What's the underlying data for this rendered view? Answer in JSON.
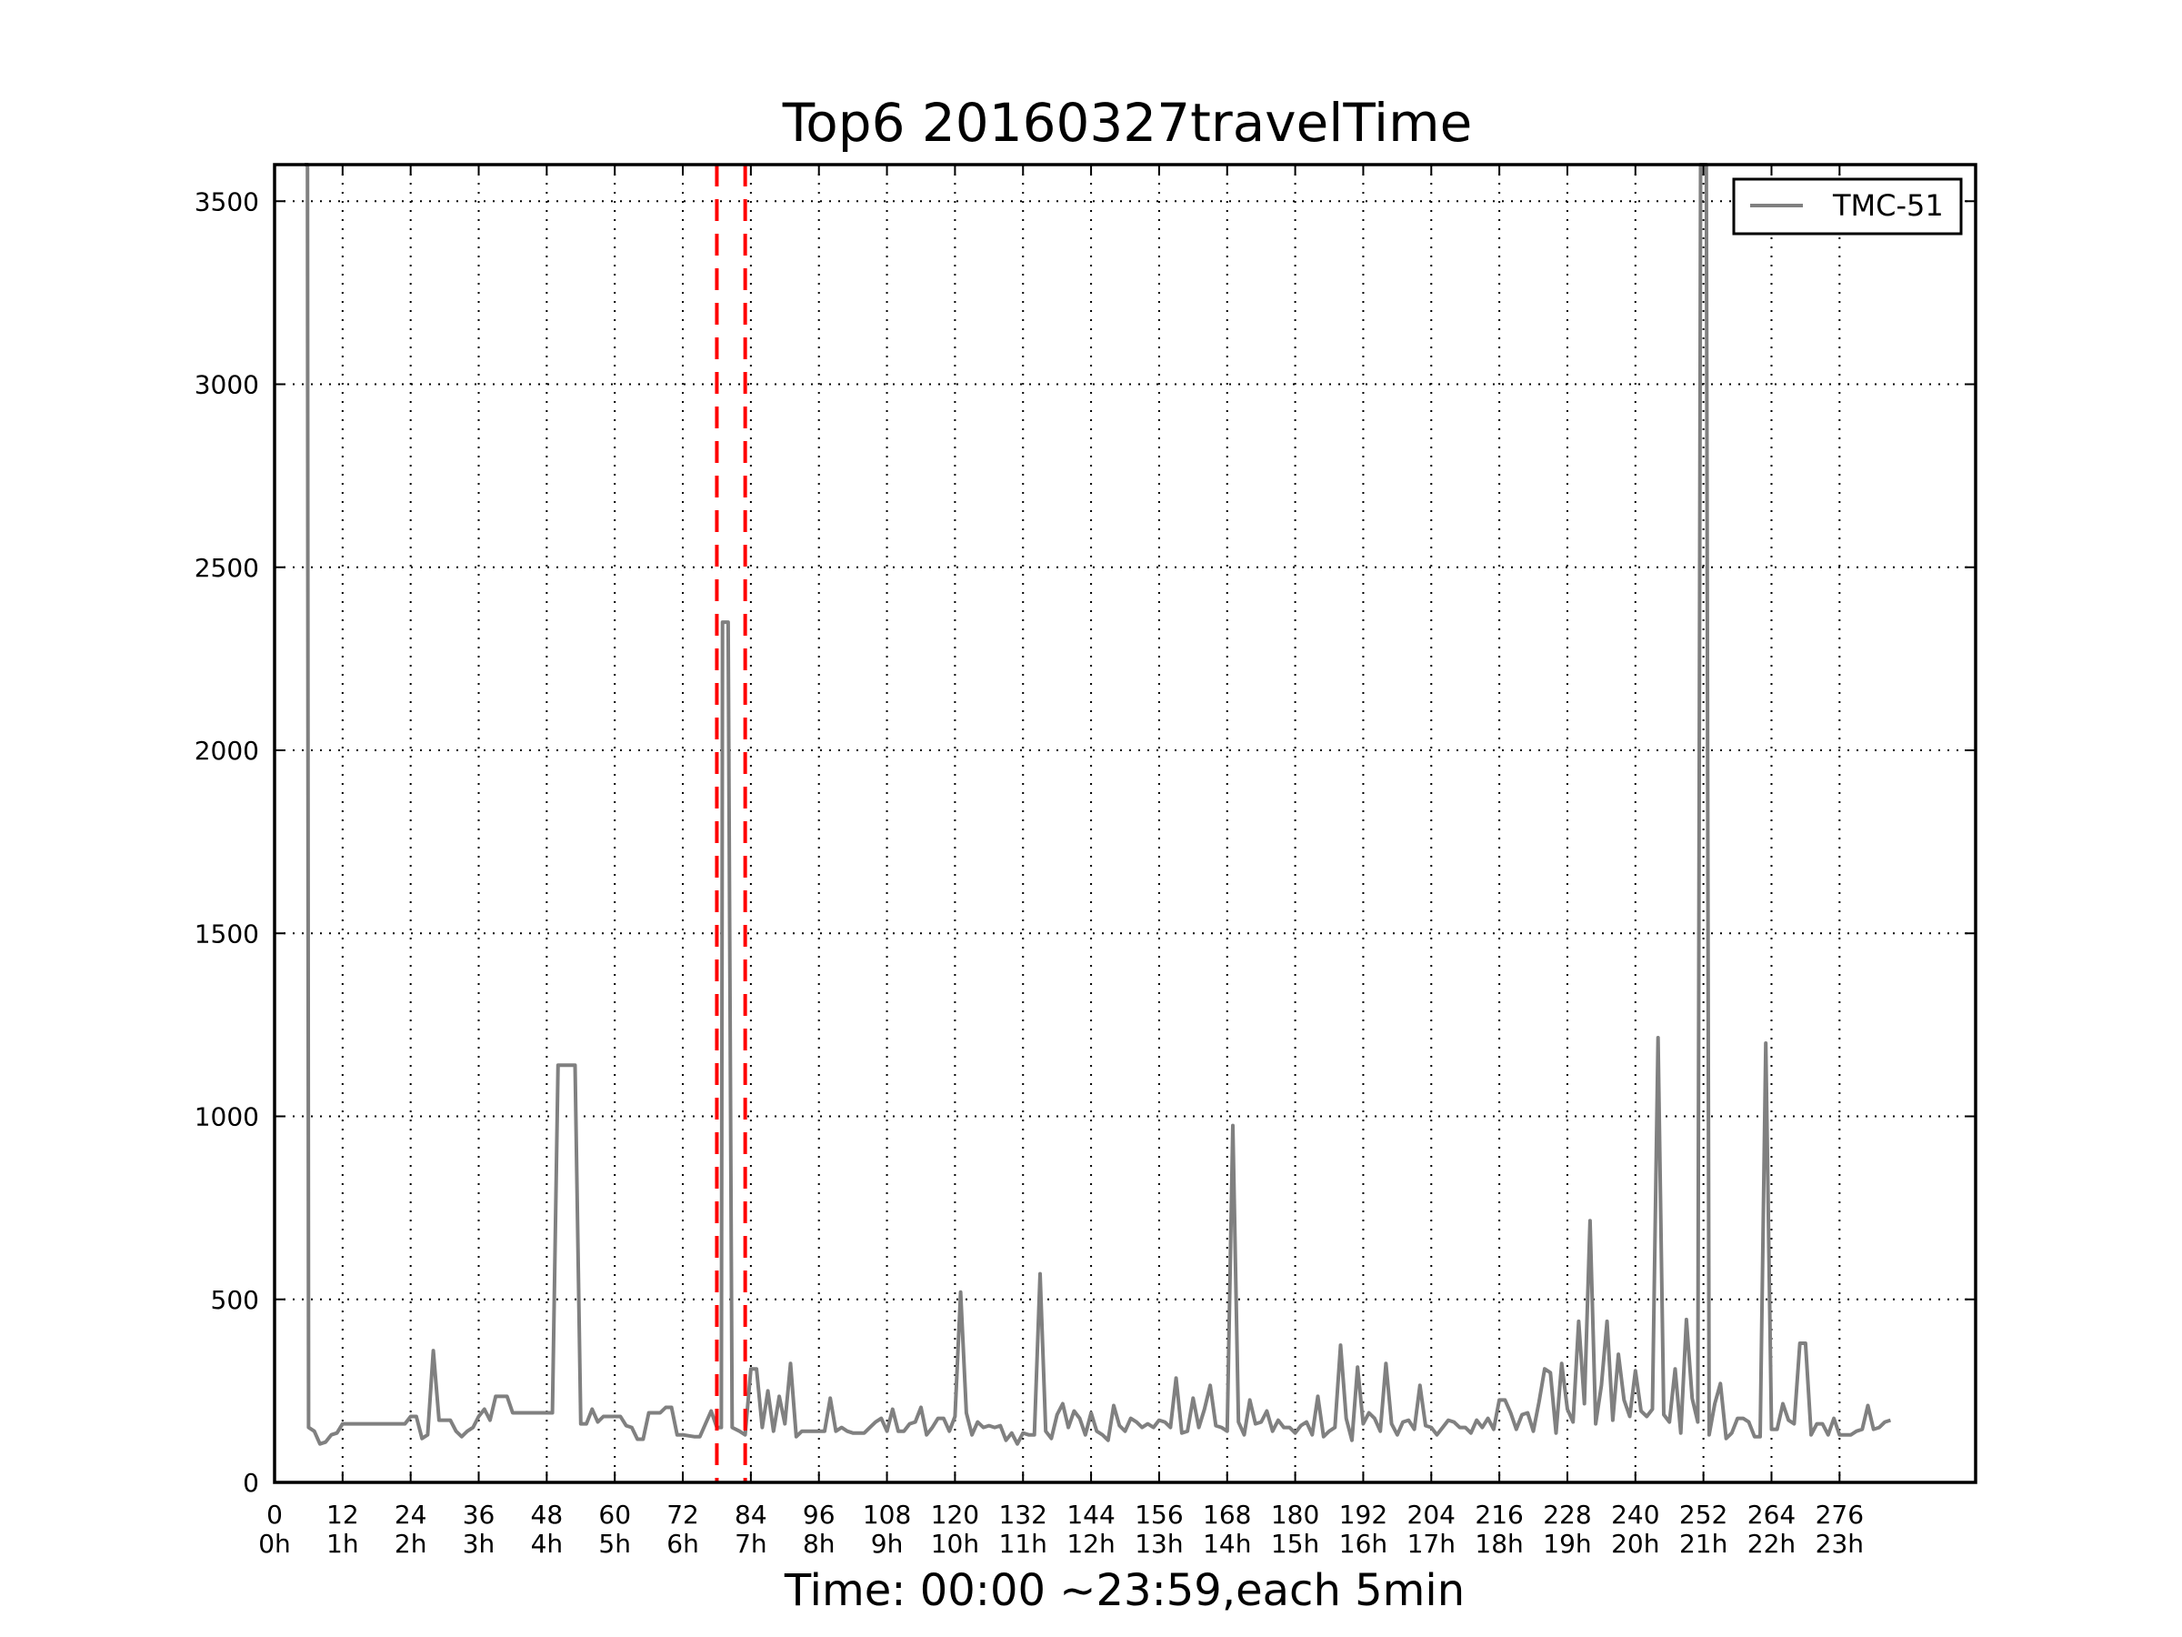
{
  "chart_data": {
    "type": "line",
    "title": "Top6 20160327travelTime",
    "xlabel": "Time: 00:00 ~23:59,each 5min",
    "ylabel": "",
    "xlim": [
      0,
      300
    ],
    "ylim": [
      0,
      3600
    ],
    "grid": true,
    "legend_position": "top-right",
    "x_ticks": [
      {
        "value": 0,
        "label": "0",
        "hour": "0h"
      },
      {
        "value": 12,
        "label": "12",
        "hour": "1h"
      },
      {
        "value": 24,
        "label": "24",
        "hour": "2h"
      },
      {
        "value": 36,
        "label": "36",
        "hour": "3h"
      },
      {
        "value": 48,
        "label": "48",
        "hour": "4h"
      },
      {
        "value": 60,
        "label": "60",
        "hour": "5h"
      },
      {
        "value": 72,
        "label": "72",
        "hour": "6h"
      },
      {
        "value": 84,
        "label": "84",
        "hour": "7h"
      },
      {
        "value": 96,
        "label": "96",
        "hour": "8h"
      },
      {
        "value": 108,
        "label": "108",
        "hour": "9h"
      },
      {
        "value": 120,
        "label": "120",
        "hour": "10h"
      },
      {
        "value": 132,
        "label": "132",
        "hour": "11h"
      },
      {
        "value": 144,
        "label": "144",
        "hour": "12h"
      },
      {
        "value": 156,
        "label": "156",
        "hour": "13h"
      },
      {
        "value": 168,
        "label": "168",
        "hour": "14h"
      },
      {
        "value": 180,
        "label": "180",
        "hour": "15h"
      },
      {
        "value": 192,
        "label": "192",
        "hour": "16h"
      },
      {
        "value": 204,
        "label": "204",
        "hour": "17h"
      },
      {
        "value": 216,
        "label": "216",
        "hour": "18h"
      },
      {
        "value": 228,
        "label": "228",
        "hour": "19h"
      },
      {
        "value": 240,
        "label": "240",
        "hour": "20h"
      },
      {
        "value": 252,
        "label": "252",
        "hour": "21h"
      },
      {
        "value": 264,
        "label": "264",
        "hour": "22h"
      },
      {
        "value": 276,
        "label": "276",
        "hour": "23h"
      }
    ],
    "y_ticks": [
      {
        "value": 0,
        "label": "0"
      },
      {
        "value": 500,
        "label": "500"
      },
      {
        "value": 1000,
        "label": "1000"
      },
      {
        "value": 1500,
        "label": "1500"
      },
      {
        "value": 2000,
        "label": "2000"
      },
      {
        "value": 2500,
        "label": "2500"
      },
      {
        "value": 3000,
        "label": "3000"
      },
      {
        "value": 3500,
        "label": "3500"
      }
    ],
    "reference_lines": [
      {
        "x": 78,
        "color": "#ff0000",
        "style": "dashed"
      },
      {
        "x": 83,
        "color": "#ff0000",
        "style": "dashed"
      }
    ],
    "series": [
      {
        "name": "TMC-51",
        "color": "#808080",
        "points": [
          [
            5.3,
            3600
          ],
          [
            5.8,
            3600
          ],
          [
            6,
            150
          ],
          [
            7,
            140
          ],
          [
            8,
            105
          ],
          [
            9,
            110
          ],
          [
            10,
            130
          ],
          [
            11,
            135
          ],
          [
            12,
            160
          ],
          [
            14,
            160
          ],
          [
            16,
            160
          ],
          [
            18,
            160
          ],
          [
            20,
            160
          ],
          [
            22,
            160
          ],
          [
            23,
            160
          ],
          [
            24,
            180
          ],
          [
            25,
            180
          ],
          [
            26,
            120
          ],
          [
            27,
            130
          ],
          [
            28,
            360
          ],
          [
            29,
            170
          ],
          [
            30,
            170
          ],
          [
            31,
            170
          ],
          [
            32,
            140
          ],
          [
            33,
            125
          ],
          [
            34,
            140
          ],
          [
            35,
            150
          ],
          [
            36,
            180
          ],
          [
            37,
            200
          ],
          [
            38,
            170
          ],
          [
            39,
            235
          ],
          [
            40,
            235
          ],
          [
            41,
            235
          ],
          [
            42,
            190
          ],
          [
            44,
            190
          ],
          [
            46,
            190
          ],
          [
            48,
            190
          ],
          [
            49,
            190
          ],
          [
            50,
            1140
          ],
          [
            53,
            1140
          ],
          [
            54,
            160
          ],
          [
            55,
            160
          ],
          [
            56,
            200
          ],
          [
            57,
            165
          ],
          [
            58,
            180
          ],
          [
            59,
            180
          ],
          [
            60,
            180
          ],
          [
            61,
            180
          ],
          [
            62,
            155
          ],
          [
            63,
            150
          ],
          [
            64,
            118
          ],
          [
            65,
            118
          ],
          [
            66,
            190
          ],
          [
            67,
            190
          ],
          [
            68,
            190
          ],
          [
            69,
            205
          ],
          [
            70,
            205
          ],
          [
            71,
            130
          ],
          [
            72,
            130
          ],
          [
            74,
            125
          ],
          [
            75,
            125
          ],
          [
            76,
            160
          ],
          [
            77,
            195
          ],
          [
            78,
            150
          ],
          [
            78.8,
            150
          ],
          [
            79,
            2350
          ],
          [
            80,
            2350
          ],
          [
            80.7,
            150
          ],
          [
            82,
            140
          ],
          [
            83,
            130
          ],
          [
            84,
            310
          ],
          [
            85,
            310
          ],
          [
            86,
            150
          ],
          [
            87,
            250
          ],
          [
            88,
            140
          ],
          [
            89,
            235
          ],
          [
            90,
            160
          ],
          [
            91,
            325
          ],
          [
            92,
            125
          ],
          [
            93,
            140
          ],
          [
            94,
            140
          ],
          [
            95,
            140
          ],
          [
            96,
            140
          ],
          [
            97,
            140
          ],
          [
            98,
            230
          ],
          [
            99,
            140
          ],
          [
            100,
            150
          ],
          [
            101,
            140
          ],
          [
            102,
            135
          ],
          [
            103,
            135
          ],
          [
            104,
            135
          ],
          [
            105,
            150
          ],
          [
            106,
            165
          ],
          [
            107,
            175
          ],
          [
            108,
            140
          ],
          [
            109,
            200
          ],
          [
            110,
            140
          ],
          [
            111,
            140
          ],
          [
            112,
            160
          ],
          [
            113,
            165
          ],
          [
            114,
            205
          ],
          [
            115,
            130
          ],
          [
            116,
            150
          ],
          [
            117,
            175
          ],
          [
            118,
            175
          ],
          [
            119,
            140
          ],
          [
            120,
            180
          ],
          [
            121,
            520
          ],
          [
            122,
            190
          ],
          [
            123,
            130
          ],
          [
            124,
            165
          ],
          [
            125,
            150
          ],
          [
            126,
            155
          ],
          [
            127,
            150
          ],
          [
            128,
            155
          ],
          [
            129,
            115
          ],
          [
            130,
            135
          ],
          [
            131,
            105
          ],
          [
            132,
            135
          ],
          [
            133,
            130
          ],
          [
            134,
            130
          ],
          [
            135,
            570
          ],
          [
            136,
            140
          ],
          [
            137,
            120
          ],
          [
            138,
            185
          ],
          [
            139,
            215
          ],
          [
            140,
            150
          ],
          [
            141,
            195
          ],
          [
            142,
            175
          ],
          [
            143,
            130
          ],
          [
            144,
            190
          ],
          [
            145,
            140
          ],
          [
            146,
            130
          ],
          [
            147,
            115
          ],
          [
            148,
            210
          ],
          [
            149,
            155
          ],
          [
            150,
            140
          ],
          [
            151,
            175
          ],
          [
            152,
            165
          ],
          [
            153,
            150
          ],
          [
            154,
            160
          ],
          [
            155,
            150
          ],
          [
            156,
            170
          ],
          [
            157,
            165
          ],
          [
            158,
            150
          ],
          [
            159,
            285
          ],
          [
            160,
            135
          ],
          [
            161,
            140
          ],
          [
            162,
            230
          ],
          [
            163,
            150
          ],
          [
            164,
            200
          ],
          [
            165,
            265
          ],
          [
            166,
            155
          ],
          [
            167,
            150
          ],
          [
            168,
            140
          ],
          [
            169,
            975
          ],
          [
            170,
            165
          ],
          [
            171,
            130
          ],
          [
            172,
            225
          ],
          [
            173,
            160
          ],
          [
            174,
            165
          ],
          [
            175,
            195
          ],
          [
            176,
            140
          ],
          [
            177,
            170
          ],
          [
            178,
            150
          ],
          [
            179,
            150
          ],
          [
            180,
            135
          ],
          [
            181,
            155
          ],
          [
            182,
            165
          ],
          [
            183,
            130
          ],
          [
            184,
            235
          ],
          [
            185,
            125
          ],
          [
            186,
            140
          ],
          [
            187,
            150
          ],
          [
            188,
            375
          ],
          [
            189,
            175
          ],
          [
            190,
            115
          ],
          [
            191,
            315
          ],
          [
            192,
            160
          ],
          [
            193,
            190
          ],
          [
            194,
            175
          ],
          [
            195,
            140
          ],
          [
            196,
            325
          ],
          [
            197,
            160
          ],
          [
            198,
            130
          ],
          [
            199,
            165
          ],
          [
            200,
            170
          ],
          [
            201,
            145
          ],
          [
            202,
            265
          ],
          [
            203,
            155
          ],
          [
            204,
            150
          ],
          [
            205,
            130
          ],
          [
            206,
            150
          ],
          [
            207,
            170
          ],
          [
            208,
            165
          ],
          [
            209,
            150
          ],
          [
            210,
            150
          ],
          [
            211,
            135
          ],
          [
            212,
            170
          ],
          [
            213,
            150
          ],
          [
            214,
            175
          ],
          [
            215,
            145
          ],
          [
            216,
            225
          ],
          [
            217,
            225
          ],
          [
            218,
            190
          ],
          [
            219,
            145
          ],
          [
            220,
            185
          ],
          [
            221,
            190
          ],
          [
            222,
            140
          ],
          [
            223,
            220
          ],
          [
            224,
            310
          ],
          [
            225,
            300
          ],
          [
            226,
            135
          ],
          [
            227,
            325
          ],
          [
            228,
            200
          ],
          [
            229,
            165
          ],
          [
            230,
            440
          ],
          [
            231,
            215
          ],
          [
            232,
            715
          ],
          [
            233,
            160
          ],
          [
            234,
            265
          ],
          [
            235,
            440
          ],
          [
            236,
            170
          ],
          [
            237,
            350
          ],
          [
            238,
            225
          ],
          [
            239,
            180
          ],
          [
            240,
            305
          ],
          [
            241,
            195
          ],
          [
            242,
            180
          ],
          [
            243,
            200
          ],
          [
            244,
            1215
          ],
          [
            245,
            185
          ],
          [
            246,
            165
          ],
          [
            247,
            310
          ],
          [
            248,
            135
          ],
          [
            249,
            445
          ],
          [
            250,
            230
          ],
          [
            251,
            165
          ],
          [
            251.5,
            3600
          ],
          [
            252.5,
            3600
          ],
          [
            253,
            130
          ],
          [
            254,
            215
          ],
          [
            255,
            270
          ],
          [
            256,
            120
          ],
          [
            257,
            135
          ],
          [
            258,
            175
          ],
          [
            259,
            175
          ],
          [
            260,
            165
          ],
          [
            261,
            125
          ],
          [
            262,
            125
          ],
          [
            263,
            1200
          ],
          [
            264,
            145
          ],
          [
            265,
            145
          ],
          [
            266,
            215
          ],
          [
            267,
            170
          ],
          [
            268,
            160
          ],
          [
            269,
            380
          ],
          [
            270,
            380
          ],
          [
            271,
            130
          ],
          [
            272,
            160
          ],
          [
            273,
            160
          ],
          [
            274,
            130
          ],
          [
            275,
            175
          ],
          [
            276,
            130
          ],
          [
            277,
            130
          ],
          [
            278,
            130
          ],
          [
            279,
            140
          ],
          [
            280,
            145
          ],
          [
            281,
            210
          ],
          [
            282,
            145
          ],
          [
            283,
            150
          ],
          [
            284,
            165
          ],
          [
            285,
            170
          ]
        ]
      }
    ]
  }
}
